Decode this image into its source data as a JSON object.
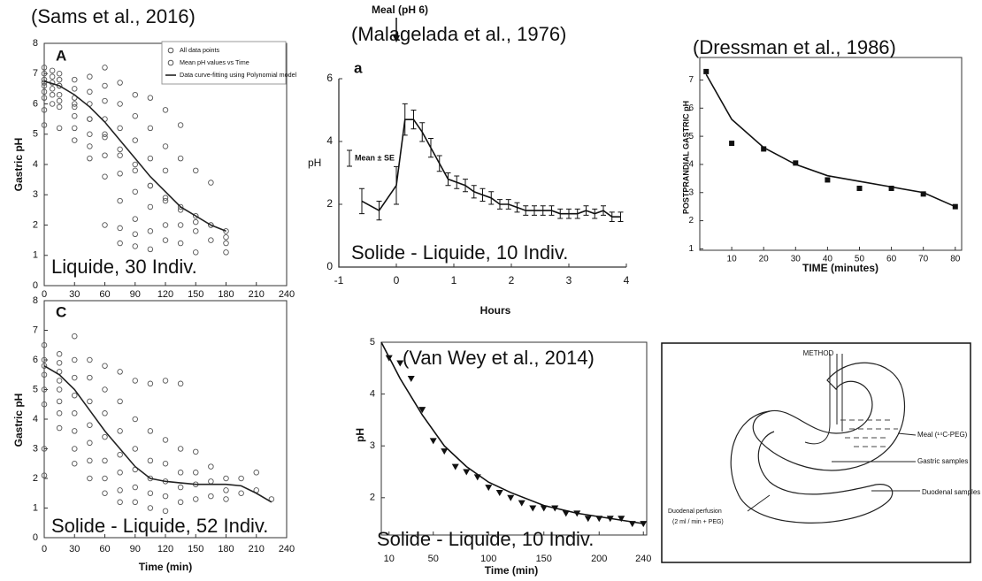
{
  "chart_data": [
    {
      "type": "scatter",
      "title": "(Sams et al., 2016)",
      "panel_label": "A",
      "ylabel": "Gastric pH",
      "annotations": [
        "Liquide, 30 Indiv."
      ],
      "xlim": [
        0,
        240
      ],
      "ylim": [
        0,
        8
      ],
      "xticks": [
        0,
        30,
        60,
        90,
        120,
        150,
        180,
        210,
        240
      ],
      "yticks": [
        0,
        1,
        2,
        3,
        4,
        5,
        6,
        7,
        8
      ],
      "series": [
        {
          "name": "All data points",
          "mode": "markers",
          "marker": "circle",
          "color": "#555555",
          "x": [
            0,
            0,
            0,
            0,
            0,
            0,
            0,
            0,
            8,
            8,
            8,
            8,
            8,
            8,
            15,
            15,
            15,
            15,
            15,
            15,
            15,
            30,
            30,
            30,
            30,
            30,
            30,
            30,
            45,
            45,
            45,
            45,
            45,
            45,
            45,
            60,
            60,
            60,
            60,
            60,
            60,
            60,
            60,
            75,
            75,
            75,
            75,
            75,
            75,
            75,
            75,
            90,
            90,
            90,
            90,
            90,
            90,
            90,
            90,
            105,
            105,
            105,
            105,
            105,
            105,
            105,
            120,
            120,
            120,
            120,
            120,
            120,
            135,
            135,
            135,
            135,
            135,
            150,
            150,
            150,
            150,
            165,
            165,
            165,
            180,
            180,
            180
          ],
          "values": [
            7.0,
            6.8,
            6.6,
            6.4,
            6.2,
            5.8,
            5.3,
            7.2,
            7.1,
            6.9,
            6.7,
            6.5,
            6.3,
            6.0,
            7.0,
            6.8,
            6.6,
            6.3,
            6.1,
            5.9,
            5.2,
            6.8,
            6.5,
            6.2,
            5.9,
            5.6,
            5.2,
            4.8,
            6.9,
            6.4,
            6.0,
            5.5,
            5.0,
            4.6,
            4.2,
            7.2,
            6.6,
            6.1,
            5.5,
            4.9,
            4.3,
            3.6,
            2.0,
            6.7,
            6.0,
            5.2,
            4.5,
            3.7,
            2.8,
            1.9,
            1.4,
            6.3,
            5.6,
            4.8,
            4.0,
            3.1,
            2.2,
            1.7,
            1.3,
            6.2,
            5.2,
            4.2,
            3.3,
            2.6,
            1.8,
            1.2,
            5.8,
            4.6,
            3.8,
            2.8,
            2.0,
            1.5,
            5.3,
            4.2,
            2.6,
            2.0,
            1.4,
            3.8,
            2.3,
            1.8,
            1.1,
            3.4,
            2.0,
            1.5,
            1.8,
            1.4,
            1.1
          ]
        },
        {
          "name": "Mean pH values vs Time",
          "mode": "markers",
          "marker": "circle",
          "color": "#555555",
          "x": [
            0,
            15,
            30,
            45,
            60,
            75,
            90,
            105,
            120,
            135,
            150,
            165,
            180
          ],
          "values": [
            6.7,
            6.6,
            6.0,
            5.5,
            5.0,
            4.3,
            3.8,
            3.3,
            2.9,
            2.5,
            2.1,
            2.0,
            1.6
          ]
        },
        {
          "name": "Data curve-fitting using Polynomial model",
          "mode": "line",
          "color": "#222222",
          "x": [
            0,
            15,
            30,
            45,
            60,
            75,
            90,
            105,
            120,
            135,
            150,
            165,
            180
          ],
          "values": [
            6.75,
            6.6,
            6.3,
            5.9,
            5.4,
            4.8,
            4.2,
            3.6,
            3.1,
            2.6,
            2.3,
            2.0,
            1.8
          ]
        }
      ]
    },
    {
      "type": "scatter",
      "panel_label": "C",
      "ylabel": "Gastric pH",
      "xlabel": "Time (min)",
      "annotations": [
        "Solide - Liquide, 52 Indiv."
      ],
      "xlim": [
        0,
        240
      ],
      "ylim": [
        0,
        8
      ],
      "xticks": [
        0,
        30,
        60,
        90,
        120,
        150,
        180,
        210,
        240
      ],
      "yticks": [
        0,
        1,
        2,
        3,
        4,
        5,
        6,
        7,
        8
      ],
      "series": [
        {
          "mode": "markers",
          "marker": "circle",
          "color": "#555555",
          "x": [
            0,
            0,
            0,
            0,
            0,
            0,
            0,
            0,
            15,
            15,
            15,
            15,
            15,
            15,
            15,
            15,
            30,
            30,
            30,
            30,
            30,
            30,
            30,
            30,
            45,
            45,
            45,
            45,
            45,
            45,
            45,
            60,
            60,
            60,
            60,
            60,
            60,
            60,
            75,
            75,
            75,
            75,
            75,
            75,
            75,
            90,
            90,
            90,
            90,
            90,
            90,
            105,
            105,
            105,
            105,
            105,
            105,
            120,
            120,
            120,
            120,
            120,
            120,
            135,
            135,
            135,
            135,
            135,
            150,
            150,
            150,
            150,
            165,
            165,
            165,
            180,
            180,
            180,
            195,
            195,
            210,
            210,
            225
          ],
          "values": [
            6.5,
            6.0,
            5.8,
            5.5,
            5.0,
            4.5,
            3.0,
            2.1,
            6.2,
            5.9,
            5.6,
            5.3,
            5.0,
            4.6,
            4.2,
            3.7,
            6.8,
            6.0,
            5.4,
            4.8,
            4.2,
            3.6,
            3.0,
            2.5,
            6.0,
            5.4,
            4.6,
            3.8,
            3.2,
            2.6,
            2.0,
            5.8,
            5.0,
            4.2,
            3.4,
            2.6,
            2.0,
            1.5,
            5.6,
            4.6,
            3.6,
            2.8,
            2.2,
            1.6,
            1.2,
            5.3,
            4.0,
            3.0,
            2.3,
            1.7,
            1.2,
            5.2,
            3.6,
            2.6,
            2.0,
            1.5,
            1.0,
            5.3,
            3.3,
            2.5,
            1.9,
            1.4,
            0.9,
            5.2,
            3.0,
            2.2,
            1.7,
            1.2,
            2.9,
            2.2,
            1.8,
            1.3,
            2.4,
            1.9,
            1.4,
            2.0,
            1.6,
            1.3,
            2.0,
            1.5,
            2.2,
            1.6,
            1.3
          ]
        },
        {
          "mode": "line",
          "color": "#222222",
          "x": [
            0,
            15,
            30,
            45,
            60,
            75,
            90,
            105,
            120,
            135,
            150,
            165,
            180,
            195,
            210,
            225
          ],
          "values": [
            5.8,
            5.5,
            5.0,
            4.3,
            3.6,
            3.0,
            2.4,
            2.0,
            1.9,
            1.85,
            1.8,
            1.8,
            1.8,
            1.75,
            1.5,
            1.2
          ]
        }
      ]
    },
    {
      "type": "line",
      "title": "(Malagelada et al., 1976)",
      "panel_label": "a",
      "ylabel": "pH",
      "xlabel": "Hours",
      "annotations": [
        "Solide - Liquide, 10 Indiv.",
        "Meal (pH 6)",
        "Mean ± SE"
      ],
      "xlim": [
        -1,
        4
      ],
      "ylim": [
        0,
        6
      ],
      "xticks": [
        -1,
        0,
        1,
        2,
        3,
        4
      ],
      "yticks": [
        0,
        2,
        4,
        6
      ],
      "series": [
        {
          "mode": "line",
          "color": "#111111",
          "x": [
            -0.6,
            -0.3,
            0,
            0.15,
            0.3,
            0.45,
            0.6,
            0.75,
            0.9,
            1.05,
            1.2,
            1.35,
            1.5,
            1.65,
            1.8,
            1.95,
            2.1,
            2.25,
            2.4,
            2.55,
            2.7,
            2.85,
            3.0,
            3.15,
            3.3,
            3.45,
            3.6,
            3.75,
            3.9
          ],
          "values": [
            2.1,
            1.8,
            2.6,
            4.7,
            4.7,
            4.3,
            3.8,
            3.3,
            2.8,
            2.7,
            2.6,
            2.4,
            2.3,
            2.2,
            2.0,
            2.0,
            1.9,
            1.8,
            1.8,
            1.8,
            1.8,
            1.7,
            1.7,
            1.7,
            1.8,
            1.7,
            1.8,
            1.6,
            1.6
          ],
          "errors": [
            0.4,
            0.3,
            0.6,
            0.5,
            0.3,
            0.3,
            0.3,
            0.25,
            0.2,
            0.2,
            0.2,
            0.2,
            0.2,
            0.2,
            0.15,
            0.15,
            0.15,
            0.15,
            0.15,
            0.15,
            0.15,
            0.15,
            0.15,
            0.15,
            0.15,
            0.15,
            0.15,
            0.15,
            0.15
          ]
        }
      ]
    },
    {
      "type": "scatter",
      "title": "(Dressman et al., 1986)",
      "ylabel": "POSTPRANDIAL GASTRIC pH",
      "xlabel": "TIME (minutes)",
      "xlim": [
        0,
        82
      ],
      "ylim": [
        0.95,
        7.8
      ],
      "xticks": [
        10,
        20,
        30,
        40,
        50,
        60,
        70,
        80
      ],
      "yticks": [
        1,
        2,
        3,
        4,
        5,
        6,
        7
      ],
      "series": [
        {
          "mode": "markers",
          "marker": "square",
          "color": "#111111",
          "x": [
            2,
            10,
            20,
            30,
            40,
            50,
            60,
            70,
            80
          ],
          "values": [
            7.3,
            4.75,
            4.55,
            4.05,
            3.45,
            3.15,
            3.15,
            2.95,
            2.5
          ]
        },
        {
          "mode": "line",
          "color": "#111111",
          "x": [
            2,
            10,
            20,
            30,
            40,
            50,
            60,
            70,
            80
          ],
          "values": [
            7.2,
            5.6,
            4.6,
            4.0,
            3.6,
            3.4,
            3.2,
            3.0,
            2.5
          ]
        }
      ]
    },
    {
      "type": "scatter",
      "title": "(Van Wey et al., 2014)",
      "ylabel": "pH",
      "xlabel": "Time (min)",
      "annotations": [
        "Solide - Liquide, 10 Indiv."
      ],
      "xlim": [
        3,
        243
      ],
      "ylim": [
        1.28,
        5
      ],
      "xticks": [
        10,
        50,
        100,
        150,
        200,
        240
      ],
      "yticks": [
        2,
        3,
        4,
        5
      ],
      "series": [
        {
          "mode": "markers",
          "marker": "triangle-down",
          "color": "#111111",
          "x": [
            10,
            20,
            30,
            40,
            50,
            60,
            70,
            80,
            90,
            100,
            110,
            120,
            130,
            140,
            150,
            160,
            170,
            180,
            190,
            200,
            210,
            220,
            230,
            240
          ],
          "values": [
            4.7,
            4.6,
            4.3,
            3.7,
            3.1,
            2.9,
            2.6,
            2.5,
            2.4,
            2.2,
            2.1,
            2.0,
            1.9,
            1.8,
            1.8,
            1.8,
            1.7,
            1.7,
            1.6,
            1.6,
            1.6,
            1.6,
            1.5,
            1.5
          ]
        },
        {
          "mode": "line",
          "color": "#111111",
          "x": [
            3,
            20,
            40,
            60,
            80,
            100,
            120,
            150,
            180,
            210,
            240
          ],
          "values": [
            5.0,
            4.3,
            3.6,
            3.0,
            2.6,
            2.3,
            2.1,
            1.85,
            1.7,
            1.6,
            1.5
          ]
        }
      ]
    }
  ],
  "diagram": {
    "title": "METHOD",
    "labels": [
      "Meal (¹⁴C-PEG)",
      "Gastric samples",
      "Duodenal samples",
      "Duodenal perfusion",
      "(2 ml / min + PEG)"
    ]
  }
}
